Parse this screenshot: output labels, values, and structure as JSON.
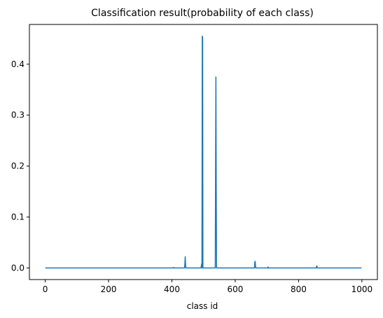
{
  "chart_data": {
    "type": "line",
    "title": "Classification result(probability of each class)",
    "xlabel": "class id",
    "ylabel": "",
    "xlim": [
      -50,
      1049
    ],
    "ylim": [
      -0.0228,
      0.478
    ],
    "x_ticks": [
      0,
      200,
      400,
      600,
      800,
      1000
    ],
    "x_tick_labels": [
      "0",
      "200",
      "400",
      "600",
      "800",
      "1000"
    ],
    "y_ticks": [
      0.0,
      0.1,
      0.2,
      0.3,
      0.4
    ],
    "y_tick_labels": [
      "0.0",
      "0.1",
      "0.2",
      "0.3",
      "0.4"
    ],
    "grid": false,
    "legend": "none",
    "series": [
      {
        "color": "#1f77b4",
        "x": [
          0,
          404,
          405,
          406,
          440,
          441,
          442,
          443,
          444,
          445,
          492,
          493,
          494,
          495,
          496,
          497,
          498,
          499,
          500,
          537,
          538,
          539,
          540,
          541,
          661,
          662,
          663,
          664,
          665,
          703,
          704,
          705,
          856,
          857,
          858,
          859,
          999
        ],
        "y": [
          0.0,
          0.0,
          0.001,
          0.0,
          0.0,
          0.008,
          0.022,
          0.009,
          0.0,
          0.0,
          0.0,
          0.004,
          0.008,
          0.0,
          0.455,
          0.452,
          0.0,
          0.0,
          0.0,
          0.0,
          0.2,
          0.375,
          0.15,
          0.0,
          0.0,
          0.012,
          0.013,
          0.004,
          0.0,
          0.0,
          0.002,
          0.0,
          0.0,
          0.003,
          0.004,
          0.0,
          0.0
        ]
      }
    ]
  }
}
